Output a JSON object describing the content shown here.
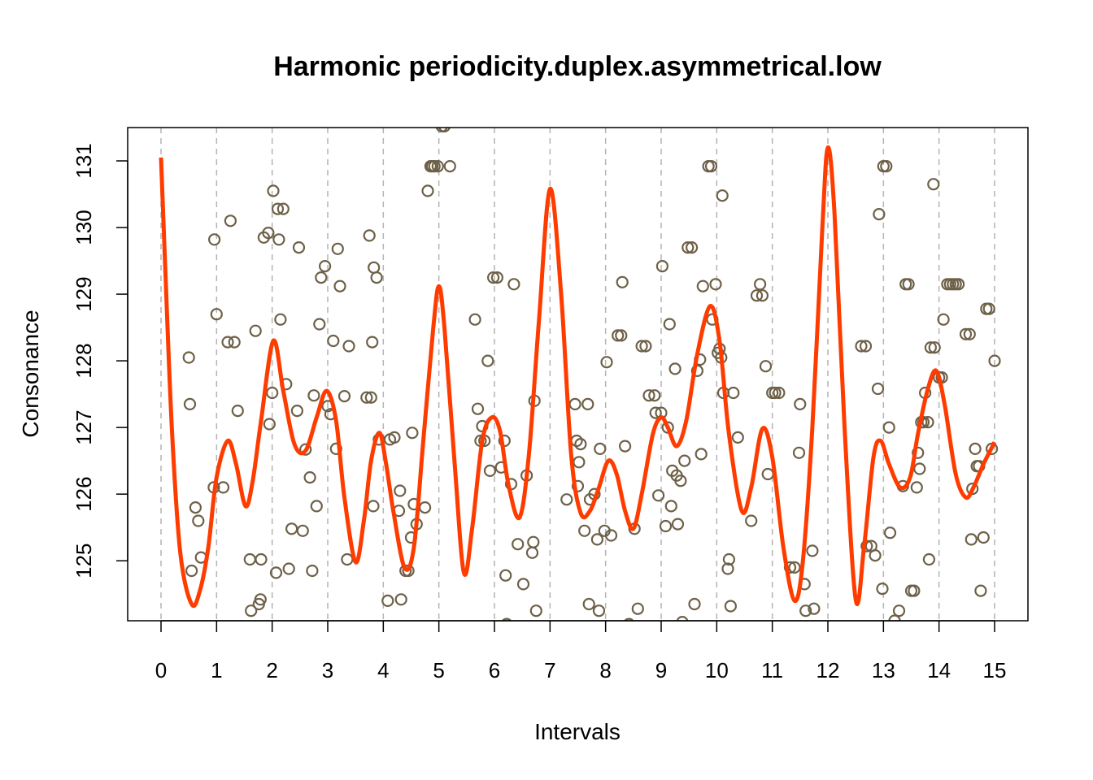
{
  "chart_data": {
    "type": "scatter",
    "title": "Harmonic periodicity.duplex.asymmetrical.low",
    "xlabel": "Intervals",
    "ylabel": "Consonance",
    "xlim": [
      -0.6,
      15.6
    ],
    "ylim": [
      124.1,
      131.5
    ],
    "xticks": [
      0,
      1,
      2,
      3,
      4,
      5,
      6,
      7,
      8,
      9,
      10,
      11,
      12,
      13,
      14,
      15
    ],
    "yticks": [
      125,
      126,
      127,
      128,
      129,
      130,
      131
    ],
    "grid": "vertical-dashed",
    "colors": {
      "points": "#6e6048",
      "curve": "#ff3c00",
      "grid": "#b4b4b4",
      "axis": "#000000"
    },
    "points": [
      [
        0.5,
        128.05
      ],
      [
        0.52,
        127.35
      ],
      [
        0.55,
        124.85
      ],
      [
        0.62,
        125.8
      ],
      [
        0.67,
        125.6
      ],
      [
        0.72,
        125.05
      ],
      [
        0.95,
        126.1
      ],
      [
        0.96,
        129.82
      ],
      [
        1.0,
        128.7
      ],
      [
        1.12,
        126.1
      ],
      [
        1.2,
        128.28
      ],
      [
        1.25,
        130.1
      ],
      [
        1.32,
        128.28
      ],
      [
        1.38,
        127.25
      ],
      [
        1.6,
        125.02
      ],
      [
        1.62,
        124.25
      ],
      [
        1.7,
        128.45
      ],
      [
        1.76,
        124.35
      ],
      [
        1.79,
        124.42
      ],
      [
        1.8,
        125.02
      ],
      [
        1.85,
        129.85
      ],
      [
        1.93,
        129.92
      ],
      [
        1.95,
        127.05
      ],
      [
        2.0,
        127.52
      ],
      [
        2.02,
        130.55
      ],
      [
        2.07,
        124.82
      ],
      [
        2.1,
        130.28
      ],
      [
        2.12,
        129.82
      ],
      [
        2.15,
        128.62
      ],
      [
        2.2,
        130.28
      ],
      [
        2.25,
        127.65
      ],
      [
        2.3,
        124.88
      ],
      [
        2.35,
        125.48
      ],
      [
        2.45,
        127.25
      ],
      [
        2.48,
        129.7
      ],
      [
        2.55,
        125.45
      ],
      [
        2.6,
        126.67
      ],
      [
        2.68,
        126.25
      ],
      [
        2.72,
        124.85
      ],
      [
        2.75,
        127.48
      ],
      [
        2.8,
        125.82
      ],
      [
        2.85,
        128.55
      ],
      [
        2.88,
        129.25
      ],
      [
        2.95,
        129.42
      ],
      [
        3.0,
        127.32
      ],
      [
        3.05,
        127.2
      ],
      [
        3.1,
        128.3
      ],
      [
        3.15,
        126.68
      ],
      [
        3.18,
        129.68
      ],
      [
        3.22,
        129.12
      ],
      [
        3.3,
        127.47
      ],
      [
        3.35,
        125.02
      ],
      [
        3.38,
        128.22
      ],
      [
        3.7,
        127.45
      ],
      [
        3.75,
        129.88
      ],
      [
        3.78,
        127.45
      ],
      [
        3.8,
        128.28
      ],
      [
        3.82,
        125.82
      ],
      [
        3.83,
        129.4
      ],
      [
        3.88,
        129.25
      ],
      [
        3.92,
        126.82
      ],
      [
        4.08,
        124.4
      ],
      [
        4.12,
        126.82
      ],
      [
        4.2,
        126.85
      ],
      [
        4.28,
        125.75
      ],
      [
        4.3,
        126.05
      ],
      [
        4.32,
        124.42
      ],
      [
        4.4,
        124.85
      ],
      [
        4.45,
        124.85
      ],
      [
        4.5,
        125.35
      ],
      [
        4.52,
        126.92
      ],
      [
        4.55,
        125.85
      ],
      [
        4.6,
        125.55
      ],
      [
        4.75,
        125.8
      ],
      [
        4.8,
        130.55
      ],
      [
        4.85,
        130.92
      ],
      [
        4.88,
        130.92
      ],
      [
        4.92,
        130.92
      ],
      [
        4.98,
        130.92
      ],
      [
        5.05,
        131.52
      ],
      [
        5.1,
        131.52
      ],
      [
        5.2,
        130.92
      ],
      [
        5.65,
        128.62
      ],
      [
        5.7,
        127.28
      ],
      [
        5.75,
        126.8
      ],
      [
        5.78,
        127.02
      ],
      [
        5.82,
        126.8
      ],
      [
        5.88,
        128.0
      ],
      [
        5.92,
        126.35
      ],
      [
        5.98,
        129.25
      ],
      [
        6.05,
        129.25
      ],
      [
        6.12,
        126.4
      ],
      [
        6.18,
        126.8
      ],
      [
        6.2,
        124.78
      ],
      [
        6.22,
        124.05
      ],
      [
        6.3,
        126.15
      ],
      [
        6.35,
        129.15
      ],
      [
        6.42,
        125.25
      ],
      [
        6.52,
        124.65
      ],
      [
        6.58,
        126.28
      ],
      [
        6.68,
        125.12
      ],
      [
        6.7,
        125.28
      ],
      [
        6.72,
        127.4
      ],
      [
        6.75,
        124.25
      ],
      [
        7.3,
        125.92
      ],
      [
        7.45,
        127.35
      ],
      [
        7.48,
        126.8
      ],
      [
        7.5,
        126.12
      ],
      [
        7.52,
        126.48
      ],
      [
        7.55,
        126.75
      ],
      [
        7.62,
        125.45
      ],
      [
        7.68,
        127.35
      ],
      [
        7.7,
        124.35
      ],
      [
        7.72,
        125.92
      ],
      [
        7.8,
        126.0
      ],
      [
        7.85,
        125.32
      ],
      [
        7.88,
        124.25
      ],
      [
        7.9,
        126.68
      ],
      [
        7.98,
        125.45
      ],
      [
        8.02,
        127.98
      ],
      [
        8.1,
        125.38
      ],
      [
        8.22,
        128.38
      ],
      [
        8.28,
        128.38
      ],
      [
        8.3,
        129.18
      ],
      [
        8.35,
        126.72
      ],
      [
        8.42,
        124.05
      ],
      [
        8.52,
        125.48
      ],
      [
        8.58,
        124.28
      ],
      [
        8.65,
        128.22
      ],
      [
        8.72,
        128.22
      ],
      [
        8.78,
        127.48
      ],
      [
        8.88,
        127.48
      ],
      [
        8.9,
        127.22
      ],
      [
        8.95,
        125.98
      ],
      [
        9.0,
        127.22
      ],
      [
        9.02,
        129.42
      ],
      [
        9.08,
        125.52
      ],
      [
        9.12,
        127.0
      ],
      [
        9.15,
        128.55
      ],
      [
        9.18,
        125.82
      ],
      [
        9.2,
        126.35
      ],
      [
        9.25,
        127.88
      ],
      [
        9.28,
        126.28
      ],
      [
        9.3,
        125.55
      ],
      [
        9.35,
        126.2
      ],
      [
        9.38,
        124.08
      ],
      [
        9.42,
        126.5
      ],
      [
        9.48,
        129.7
      ],
      [
        9.55,
        129.7
      ],
      [
        9.6,
        124.35
      ],
      [
        9.65,
        127.85
      ],
      [
        9.7,
        128.02
      ],
      [
        9.72,
        126.6
      ],
      [
        9.75,
        129.12
      ],
      [
        9.85,
        130.92
      ],
      [
        9.9,
        130.92
      ],
      [
        9.92,
        128.62
      ],
      [
        9.98,
        129.15
      ],
      [
        10.02,
        128.12
      ],
      [
        10.05,
        128.18
      ],
      [
        10.08,
        128.05
      ],
      [
        10.1,
        130.48
      ],
      [
        10.12,
        127.52
      ],
      [
        10.2,
        124.88
      ],
      [
        10.22,
        125.02
      ],
      [
        10.25,
        124.32
      ],
      [
        10.3,
        127.52
      ],
      [
        10.38,
        126.85
      ],
      [
        10.62,
        125.6
      ],
      [
        10.72,
        128.98
      ],
      [
        10.78,
        129.15
      ],
      [
        10.82,
        128.98
      ],
      [
        10.88,
        127.92
      ],
      [
        10.92,
        126.3
      ],
      [
        11.0,
        127.52
      ],
      [
        11.05,
        127.52
      ],
      [
        11.12,
        127.52
      ],
      [
        11.32,
        124.9
      ],
      [
        11.4,
        124.9
      ],
      [
        11.48,
        126.62
      ],
      [
        11.5,
        127.35
      ],
      [
        11.58,
        124.65
      ],
      [
        11.6,
        124.25
      ],
      [
        11.72,
        125.15
      ],
      [
        11.75,
        124.28
      ],
      [
        12.6,
        128.22
      ],
      [
        12.68,
        128.22
      ],
      [
        12.7,
        125.22
      ],
      [
        12.78,
        125.22
      ],
      [
        12.85,
        125.08
      ],
      [
        12.9,
        127.58
      ],
      [
        12.92,
        130.2
      ],
      [
        12.98,
        124.58
      ],
      [
        13.0,
        130.92
      ],
      [
        13.05,
        130.92
      ],
      [
        13.1,
        127.0
      ],
      [
        13.12,
        125.42
      ],
      [
        13.2,
        124.1
      ],
      [
        13.28,
        124.25
      ],
      [
        13.35,
        126.12
      ],
      [
        13.4,
        129.15
      ],
      [
        13.45,
        129.15
      ],
      [
        13.5,
        124.55
      ],
      [
        13.55,
        124.55
      ],
      [
        13.6,
        126.1
      ],
      [
        13.62,
        126.62
      ],
      [
        13.65,
        126.38
      ],
      [
        13.68,
        127.08
      ],
      [
        13.72,
        127.08
      ],
      [
        13.75,
        127.52
      ],
      [
        13.8,
        127.08
      ],
      [
        13.82,
        125.02
      ],
      [
        13.85,
        128.2
      ],
      [
        13.9,
        130.65
      ],
      [
        13.92,
        128.2
      ],
      [
        14.0,
        127.75
      ],
      [
        14.05,
        127.75
      ],
      [
        14.08,
        128.62
      ],
      [
        14.15,
        129.15
      ],
      [
        14.2,
        129.15
      ],
      [
        14.25,
        129.15
      ],
      [
        14.3,
        129.15
      ],
      [
        14.35,
        129.15
      ],
      [
        14.48,
        128.4
      ],
      [
        14.55,
        128.4
      ],
      [
        14.58,
        125.32
      ],
      [
        14.6,
        126.08
      ],
      [
        14.65,
        126.68
      ],
      [
        14.68,
        126.42
      ],
      [
        14.72,
        126.42
      ],
      [
        14.75,
        124.55
      ],
      [
        14.8,
        125.35
      ],
      [
        14.85,
        128.78
      ],
      [
        14.9,
        128.78
      ],
      [
        14.95,
        126.68
      ],
      [
        15.0,
        128.0
      ]
    ],
    "curve": [
      [
        0.0,
        131.05
      ],
      [
        0.08,
        129.3
      ],
      [
        0.2,
        126.9
      ],
      [
        0.35,
        125.1
      ],
      [
        0.55,
        124.35
      ],
      [
        0.7,
        124.55
      ],
      [
        0.85,
        125.2
      ],
      [
        1.0,
        126.25
      ],
      [
        1.2,
        126.8
      ],
      [
        1.35,
        126.45
      ],
      [
        1.52,
        125.82
      ],
      [
        1.65,
        126.2
      ],
      [
        1.8,
        127.1
      ],
      [
        2.02,
        128.3
      ],
      [
        2.2,
        127.55
      ],
      [
        2.4,
        126.75
      ],
      [
        2.6,
        126.65
      ],
      [
        2.8,
        127.15
      ],
      [
        2.98,
        127.55
      ],
      [
        3.15,
        127.1
      ],
      [
        3.3,
        125.95
      ],
      [
        3.5,
        124.98
      ],
      [
        3.65,
        125.6
      ],
      [
        3.78,
        126.5
      ],
      [
        3.93,
        126.92
      ],
      [
        4.05,
        126.45
      ],
      [
        4.18,
        125.75
      ],
      [
        4.38,
        124.9
      ],
      [
        4.55,
        125.2
      ],
      [
        4.72,
        126.8
      ],
      [
        4.9,
        128.5
      ],
      [
        5.0,
        129.12
      ],
      [
        5.1,
        128.5
      ],
      [
        5.28,
        126.5
      ],
      [
        5.45,
        124.82
      ],
      [
        5.6,
        125.5
      ],
      [
        5.78,
        126.8
      ],
      [
        5.95,
        127.15
      ],
      [
        6.1,
        126.95
      ],
      [
        6.25,
        126.15
      ],
      [
        6.45,
        125.65
      ],
      [
        6.62,
        126.6
      ],
      [
        6.8,
        128.6
      ],
      [
        7.0,
        130.58
      ],
      [
        7.2,
        129.0
      ],
      [
        7.38,
        126.6
      ],
      [
        7.55,
        125.72
      ],
      [
        7.72,
        125.75
      ],
      [
        7.88,
        126.1
      ],
      [
        8.05,
        126.5
      ],
      [
        8.2,
        126.3
      ],
      [
        8.35,
        125.75
      ],
      [
        8.5,
        125.48
      ],
      [
        8.65,
        126.0
      ],
      [
        8.85,
        126.9
      ],
      [
        9.0,
        127.15
      ],
      [
        9.12,
        127.0
      ],
      [
        9.28,
        126.72
      ],
      [
        9.45,
        127.1
      ],
      [
        9.65,
        128.1
      ],
      [
        9.88,
        128.82
      ],
      [
        10.05,
        128.3
      ],
      [
        10.22,
        126.9
      ],
      [
        10.45,
        125.75
      ],
      [
        10.62,
        126.1
      ],
      [
        10.82,
        126.98
      ],
      [
        11.0,
        126.55
      ],
      [
        11.2,
        125.2
      ],
      [
        11.4,
        124.4
      ],
      [
        11.55,
        125.0
      ],
      [
        11.72,
        127.0
      ],
      [
        11.9,
        130.0
      ],
      [
        12.0,
        131.2
      ],
      [
        12.12,
        130.2
      ],
      [
        12.3,
        127.0
      ],
      [
        12.5,
        124.42
      ],
      [
        12.65,
        125.2
      ],
      [
        12.82,
        126.55
      ],
      [
        12.95,
        126.8
      ],
      [
        13.1,
        126.45
      ],
      [
        13.3,
        126.1
      ],
      [
        13.48,
        126.25
      ],
      [
        13.62,
        126.9
      ],
      [
        13.8,
        127.58
      ],
      [
        13.95,
        127.85
      ],
      [
        14.1,
        127.35
      ],
      [
        14.3,
        126.3
      ],
      [
        14.48,
        125.95
      ],
      [
        14.62,
        126.1
      ],
      [
        14.8,
        126.45
      ],
      [
        15.0,
        126.78
      ]
    ]
  }
}
